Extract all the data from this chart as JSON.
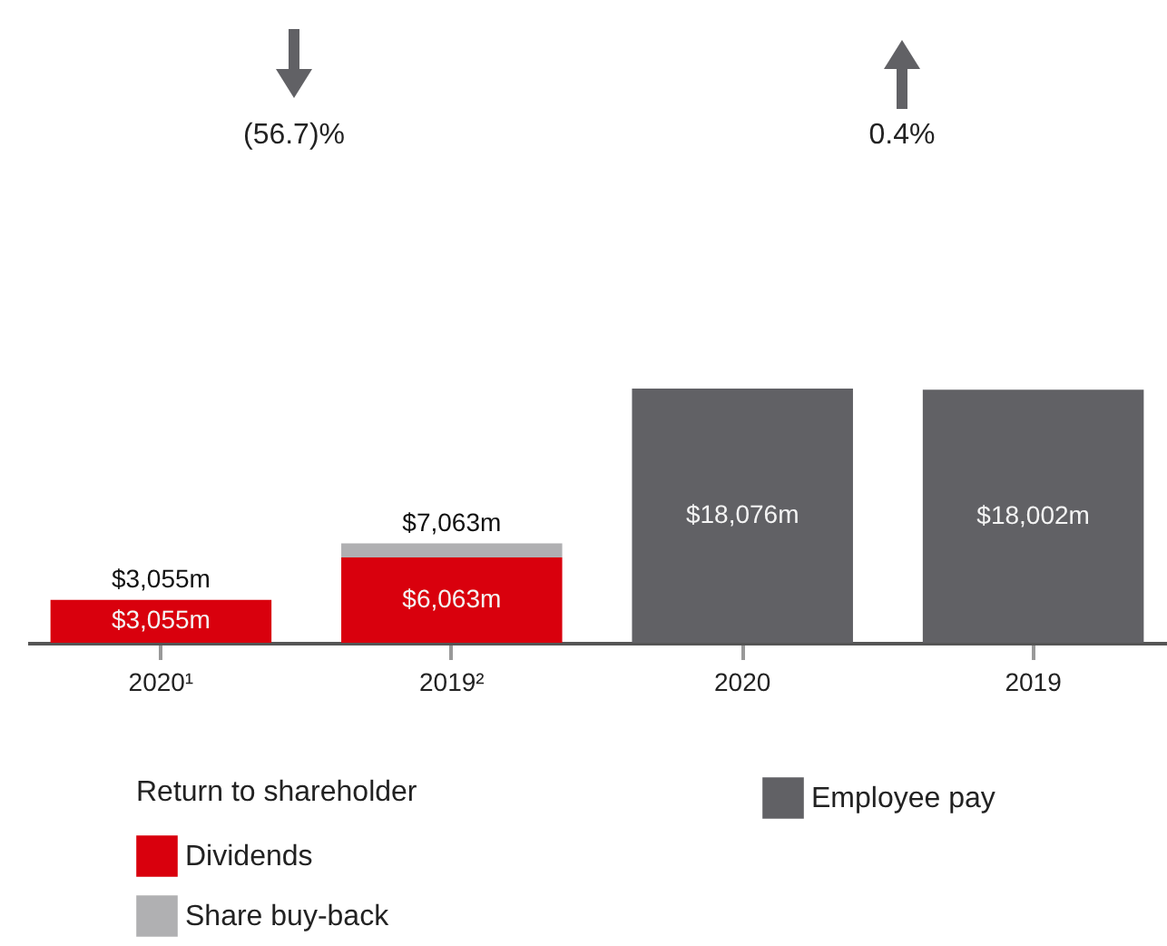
{
  "chart_data": {
    "type": "bar",
    "stacked": true,
    "categories": [
      "2020¹",
      "2019²",
      "2020",
      "2019"
    ],
    "series": [
      {
        "name": "Dividends",
        "color": "#d9000d",
        "values": [
          3055,
          6063,
          null,
          null
        ],
        "value_labels": [
          "$3,055m",
          "$6,063m",
          null,
          null
        ]
      },
      {
        "name": "Share buy-back",
        "color": "#b0b0b2",
        "values": [
          null,
          1000,
          null,
          null
        ]
      },
      {
        "name": "Employee pay",
        "color": "#616165",
        "values": [
          null,
          null,
          18076,
          18002
        ],
        "value_labels": [
          null,
          null,
          "$18,076m",
          "$18,002m"
        ]
      }
    ],
    "totals": [
      "$3,055m",
      "$7,063m",
      null,
      null
    ],
    "legend_title": "Return to shareholder",
    "legend": "bottom",
    "annotations": [
      "(56.7)%",
      "0.4%"
    ]
  }
}
